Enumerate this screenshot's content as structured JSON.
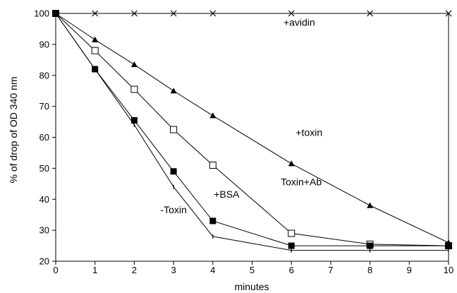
{
  "chart_data": {
    "type": "line",
    "title": "",
    "xlabel": "minutes",
    "ylabel": "% of drop of OD 340 nm",
    "xlim": [
      0,
      10
    ],
    "ylim": [
      20,
      100
    ],
    "x_ticks": [
      0,
      1,
      2,
      3,
      4,
      5,
      6,
      7,
      8,
      9,
      10
    ],
    "y_ticks": [
      20,
      30,
      40,
      50,
      60,
      70,
      80,
      90,
      100
    ],
    "grid": false,
    "legend": "none",
    "annotations": [
      {
        "text": "+avidin",
        "x": 6.2,
        "y": 96
      },
      {
        "text": "+toxin",
        "x": 6.45,
        "y": 60.5
      },
      {
        "text": "Toxin+Ab",
        "x": 6.25,
        "y": 44.5
      },
      {
        "text": "+BSA",
        "x": 4.35,
        "y": 40.5
      },
      {
        "text": "-Toxin",
        "x": 3.0,
        "y": 35.5
      }
    ],
    "series": [
      {
        "marker": "x",
        "x": [
          0,
          1,
          2,
          3,
          4,
          6,
          8,
          10
        ],
        "y": [
          100,
          100,
          100,
          100,
          100,
          100,
          100,
          100
        ]
      },
      {
        "marker": "filled-triangle",
        "x": [
          0,
          1,
          2,
          3,
          4,
          6,
          8,
          10
        ],
        "y": [
          100,
          91.5,
          83.5,
          75,
          67,
          51.5,
          38,
          26
        ]
      },
      {
        "marker": "open-square",
        "x": [
          0,
          1,
          2,
          3,
          4,
          6,
          8,
          10
        ],
        "y": [
          100,
          88,
          75.5,
          62.5,
          51,
          29,
          25.5,
          25
        ]
      },
      {
        "marker": "filled-square",
        "x": [
          0,
          1,
          2,
          3,
          4,
          6,
          8,
          10
        ],
        "y": [
          100,
          82,
          65.5,
          49,
          33,
          25,
          25,
          25
        ]
      },
      {
        "marker": "tick",
        "x": [
          0,
          1,
          2,
          3,
          4,
          6,
          8,
          10
        ],
        "y": [
          100,
          82,
          64,
          44,
          28,
          23.5,
          23.5,
          23.5
        ]
      }
    ]
  }
}
